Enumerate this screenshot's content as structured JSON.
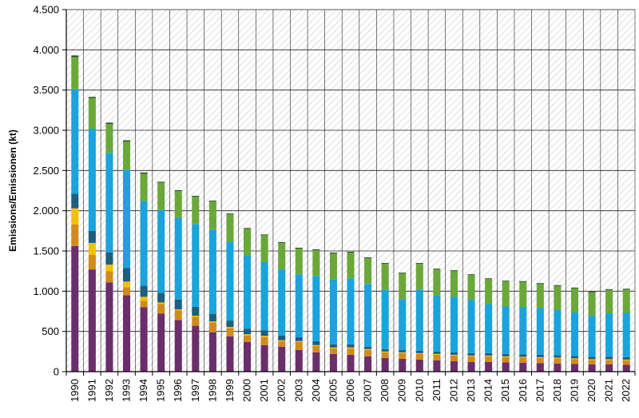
{
  "chart_data": {
    "type": "bar",
    "stacked": true,
    "title": "",
    "xlabel": "",
    "ylabel": "Emissions/Emissionen (kt)",
    "ylim": [
      0,
      4500
    ],
    "yticks": [
      0,
      500,
      1000,
      1500,
      2000,
      2500,
      3000,
      3500,
      4000,
      4500
    ],
    "ytick_labels": [
      "0",
      "500",
      "1.000",
      "1.500",
      "2.000",
      "2.500",
      "3.000",
      "3.500",
      "4.000",
      "4.500"
    ],
    "grid": true,
    "background_pattern": "diagonal-hatch",
    "categories": [
      "1990",
      "1991",
      "1992",
      "1993",
      "1994",
      "1995",
      "1996",
      "1997",
      "1998",
      "1999",
      "2000",
      "2001",
      "2002",
      "2003",
      "2004",
      "2005",
      "2006",
      "2007",
      "2008",
      "2009",
      "2010",
      "2011",
      "2012",
      "2013",
      "2014",
      "2015",
      "2016",
      "2017",
      "2018",
      "2019",
      "2020",
      "2021",
      "2022"
    ],
    "series": [
      {
        "color": "#6a2f6b",
        "values": [
          1560,
          1270,
          1110,
          950,
          800,
          720,
          640,
          570,
          490,
          440,
          370,
          330,
          310,
          270,
          240,
          220,
          210,
          190,
          170,
          160,
          150,
          140,
          130,
          120,
          120,
          115,
          110,
          105,
          100,
          95,
          90,
          90,
          85
        ]
      },
      {
        "color": "#d08a1e",
        "values": [
          270,
          180,
          140,
          100,
          80,
          120,
          120,
          110,
          120,
          100,
          80,
          100,
          70,
          100,
          80,
          70,
          80,
          80,
          70,
          70,
          70,
          70,
          70,
          70,
          70,
          65,
          65,
          65,
          65,
          60,
          55,
          55,
          55
        ]
      },
      {
        "color": "#f5c000",
        "values": [
          200,
          150,
          80,
          70,
          50,
          20,
          15,
          15,
          15,
          15,
          15,
          15,
          10,
          10,
          10,
          10,
          10,
          10,
          10,
          10,
          10,
          10,
          10,
          10,
          10,
          10,
          10,
          10,
          10,
          10,
          10,
          10,
          10
        ]
      },
      {
        "color": "#1f5e7c",
        "values": [
          180,
          150,
          150,
          170,
          140,
          120,
          120,
          110,
          90,
          80,
          70,
          70,
          60,
          50,
          50,
          40,
          40,
          30,
          30,
          30,
          30,
          30,
          30,
          30,
          30,
          30,
          30,
          30,
          30,
          30,
          30,
          30,
          30
        ]
      },
      {
        "color": "#1aa3dc",
        "values": [
          1300,
          1270,
          1240,
          1220,
          1050,
          1030,
          1020,
          1030,
          1050,
          980,
          910,
          850,
          820,
          780,
          810,
          810,
          820,
          780,
          740,
          630,
          760,
          700,
          690,
          660,
          610,
          590,
          590,
          580,
          560,
          540,
          510,
          540,
          550
        ]
      },
      {
        "color": "#6aa83a",
        "values": [
          400,
          380,
          360,
          350,
          340,
          340,
          330,
          340,
          350,
          340,
          330,
          330,
          330,
          320,
          320,
          320,
          320,
          320,
          320,
          320,
          320,
          320,
          320,
          310,
          310,
          310,
          310,
          300,
          300,
          300,
          290,
          290,
          290
        ]
      },
      {
        "color": "#2b4a1e",
        "values": [
          20,
          15,
          15,
          15,
          15,
          10,
          10,
          10,
          10,
          10,
          10,
          10,
          10,
          10,
          10,
          10,
          10,
          10,
          10,
          10,
          10,
          10,
          10,
          10,
          10,
          10,
          10,
          10,
          10,
          10,
          10,
          10,
          10
        ]
      }
    ]
  }
}
